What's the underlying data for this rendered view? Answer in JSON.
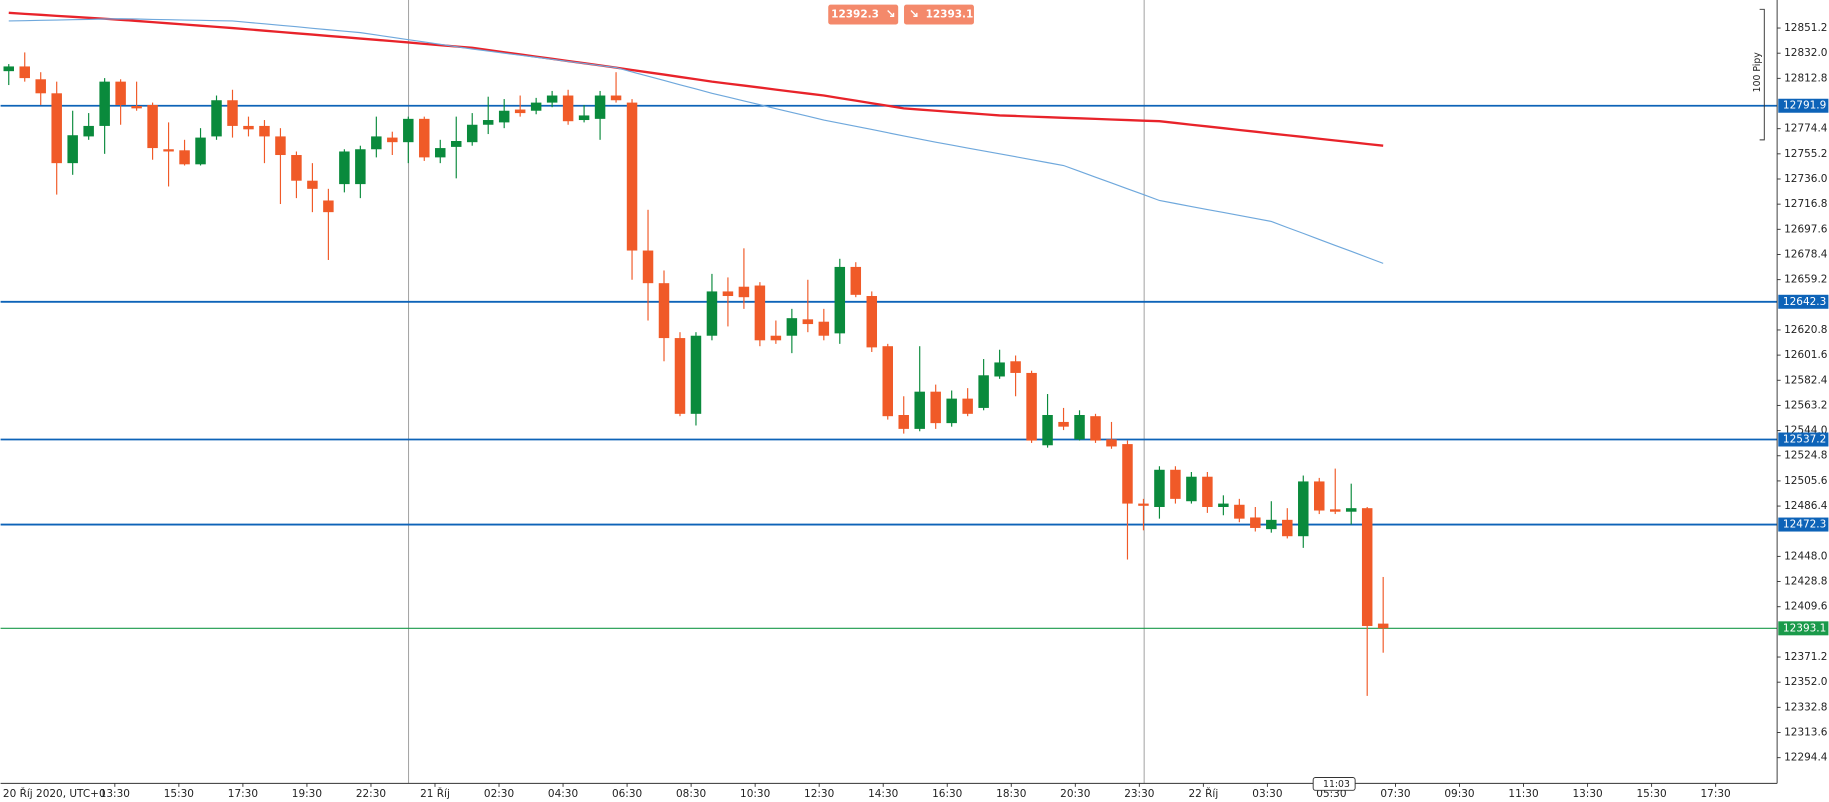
{
  "chart_data": {
    "type": "candlestick",
    "bid_price": "12392.3",
    "ask_price": "12393.1",
    "range_label": "100 Pipy",
    "time_label": "11:03",
    "xlabels": [
      "20 Říj 2020, UTC+0",
      "13:30",
      "15:30",
      "17:30",
      "19:30",
      "22:30",
      "21 Říj",
      "02:30",
      "04:30",
      "06:30",
      "08:30",
      "10:30",
      "12:30",
      "14:30",
      "16:30",
      "18:30",
      "20:30",
      "23:30",
      "22 Říj",
      "03:30",
      "05:30",
      "07:30",
      "09:30",
      "11:30",
      "13:30",
      "15:30",
      "17:30"
    ],
    "up_color": "#0a8a3c",
    "down_color": "#f05a28",
    "open": [
      12818.3,
      12821.9,
      12812.1,
      12801.4,
      12748.1,
      12768.5,
      12776.5,
      12810.3,
      12791.7,
      12792.5,
      12758.7,
      12757.9,
      12747.2,
      12768.5,
      12796.1,
      12776.5,
      12776.5,
      12768.5,
      12754.3,
      12734.7,
      12719.6,
      12732.1,
      12732.1,
      12758.7,
      12767.6,
      12764.1,
      12781.9,
      12752.5,
      12760.5,
      12764.1,
      12777.4,
      12779.2,
      12789.0,
      12788.1,
      12794.3,
      12799.7,
      12781.0,
      12781.9,
      12799.7,
      12794.3,
      12681.4,
      12656.5,
      12614.6,
      12556.8,
      12616.4,
      12650.2,
      12653.8,
      12654.7,
      12616.4,
      12616.4,
      12628.9,
      12627.1,
      12618.2,
      12668.9,
      12646.7,
      12608.4,
      12555.9,
      12545.3,
      12573.7,
      12549.7,
      12568.4,
      12561.3,
      12585.3,
      12596.9,
      12588.0,
      12532.8,
      12550.6,
      12537.3,
      12555.0,
      12537.3,
      12533.7,
      12488.3,
      12485.7,
      12514.1,
      12490.1,
      12508.8,
      12485.7,
      12487.4,
      12477.7,
      12468.8,
      12475.9,
      12463.4,
      12505.2,
      12483.9,
      12482.1,
      12484.8,
      12396.7
    ],
    "high": [
      12823.7,
      12832.6,
      12817.5,
      12810.3,
      12788.1,
      12786.3,
      12813.0,
      12812.1,
      12810.3,
      12794.3,
      12779.2,
      12765.9,
      12774.8,
      12799.7,
      12804.1,
      12783.6,
      12781.0,
      12774.8,
      12757.0,
      12748.1,
      12728.5,
      12758.7,
      12761.4,
      12783.6,
      12772.1,
      12783.6,
      12783.6,
      12765.9,
      12783.6,
      12786.3,
      12798.8,
      12797.0,
      12799.7,
      12797.9,
      12803.2,
      12804.1,
      12792.5,
      12803.2,
      12817.5,
      12797.0,
      12712.5,
      12666.2,
      12619.1,
      12619.1,
      12663.6,
      12660.9,
      12683.1,
      12657.3,
      12628.0,
      12636.9,
      12659.1,
      12636.9,
      12675.1,
      12672.5,
      12650.2,
      12610.2,
      12570.2,
      12608.4,
      12579.1,
      12574.6,
      12576.4,
      12598.6,
      12605.7,
      12601.3,
      12589.7,
      12571.9,
      12561.3,
      12559.5,
      12556.8,
      12550.6,
      12536.4,
      12491.9,
      12516.8,
      12516.8,
      12512.4,
      12512.4,
      12494.6,
      12491.9,
      12485.7,
      12490.1,
      12484.8,
      12509.7,
      12507.9,
      12515.0,
      12503.5,
      12485.7,
      12432.3
    ],
    "low": [
      12807.7,
      12810.3,
      12792.5,
      12724.1,
      12739.2,
      12765.9,
      12755.2,
      12777.4,
      12788.1,
      12750.7,
      12730.3,
      12746.3,
      12746.3,
      12765.9,
      12767.6,
      12768.5,
      12748.1,
      12716.9,
      12721.4,
      12710.7,
      12674.2,
      12725.8,
      12721.4,
      12752.5,
      12754.3,
      12748.1,
      12749.8,
      12748.1,
      12736.5,
      12761.4,
      12770.3,
      12774.8,
      12783.6,
      12785.4,
      12790.8,
      12777.4,
      12779.2,
      12765.9,
      12794.3,
      12659.1,
      12628.0,
      12596.9,
      12555.0,
      12547.9,
      12612.9,
      12623.5,
      12636.9,
      12608.4,
      12610.2,
      12603.1,
      12619.1,
      12612.9,
      12610.2,
      12645.8,
      12604.0,
      12552.4,
      12541.7,
      12543.5,
      12545.3,
      12547.0,
      12555.0,
      12559.5,
      12583.5,
      12570.2,
      12534.6,
      12531.0,
      12544.4,
      12536.4,
      12534.6,
      12530.1,
      12445.6,
      12467.9,
      12476.8,
      12488.3,
      12488.3,
      12481.2,
      12479.4,
      12474.1,
      12467.0,
      12466.1,
      12461.7,
      12454.5,
      12480.3,
      12480.3,
      12472.3,
      12341.6,
      12374.5
    ],
    "close": [
      12821.9,
      12813.0,
      12801.4,
      12748.1,
      12769.4,
      12776.5,
      12810.3,
      12792.5,
      12789.9,
      12759.6,
      12757.0,
      12747.2,
      12767.6,
      12796.1,
      12776.5,
      12773.9,
      12768.5,
      12754.3,
      12734.7,
      12728.5,
      12710.7,
      12757.0,
      12758.7,
      12768.5,
      12764.1,
      12781.9,
      12752.5,
      12759.6,
      12765.0,
      12777.4,
      12781.0,
      12788.1,
      12786.3,
      12794.3,
      12799.7,
      12780.1,
      12784.5,
      12799.7,
      12796.1,
      12681.4,
      12656.5,
      12614.6,
      12556.8,
      12616.4,
      12650.2,
      12646.7,
      12645.8,
      12612.9,
      12612.9,
      12629.8,
      12625.3,
      12616.4,
      12668.9,
      12647.6,
      12607.5,
      12555.0,
      12545.3,
      12573.7,
      12549.7,
      12568.4,
      12556.8,
      12586.2,
      12596.0,
      12588.0,
      12536.4,
      12555.9,
      12547.0,
      12555.9,
      12536.4,
      12531.9,
      12488.3,
      12486.6,
      12514.1,
      12491.9,
      12508.8,
      12485.7,
      12488.3,
      12476.8,
      12469.7,
      12475.9,
      12463.4,
      12505.2,
      12483.0,
      12482.1,
      12484.8,
      12394.9,
      12393.1
    ],
    "moving_averages": [
      {
        "color": "#e8232a",
        "values": [
          12862.8,
          12862.0,
          12861.3,
          12860.5,
          12859.8,
          12859.0,
          12858.3,
          12857.5,
          12856.6,
          12855.7,
          12854.8,
          12853.9,
          12853.0,
          12852.1,
          12851.2,
          12850.2,
          12849.2,
          12848.2,
          12847.2,
          12846.2,
          12845.2,
          12844.2,
          12843.2,
          12842.2,
          12841.2,
          12840.2,
          12839.1,
          12838.1,
          12837.1,
          12836.1,
          12834.4,
          12832.7,
          12831.1,
          12829.4,
          12827.7,
          12826.0,
          12824.4,
          12822.7,
          12821.0,
          12819.2,
          12817.4,
          12815.7,
          12813.9,
          12812.1,
          12810.3,
          12808.8,
          12807.3,
          12805.8,
          12804.2,
          12802.7,
          12801.2,
          12799.7,
          12797.7,
          12795.8,
          12793.8,
          12791.9,
          12789.9,
          12789.0,
          12788.1,
          12787.2,
          12786.3,
          12785.4,
          12784.5,
          12784.1,
          12783.6,
          12783.2,
          12782.7,
          12782.3,
          12781.9,
          12781.4,
          12781.0,
          12780.5,
          12780.1,
          12778.8,
          12777.4,
          12776.1,
          12774.8,
          12773.4,
          12772.1,
          12770.7,
          12769.4,
          12768.1,
          12766.7,
          12765.4,
          12764.1,
          12762.7,
          12761.4
        ]
      },
      {
        "color": "#6fa8dc",
        "values": [
          12856.6,
          12856.8,
          12857.1,
          12857.3,
          12857.6,
          12857.8,
          12858.1,
          12858.3,
          12858.1,
          12857.8,
          12857.6,
          12857.3,
          12857.1,
          12856.8,
          12856.6,
          12855.5,
          12854.4,
          12853.3,
          12852.2,
          12851.0,
          12849.9,
          12848.8,
          12847.7,
          12845.9,
          12844.1,
          12842.3,
          12840.6,
          12838.8,
          12837.0,
          12835.2,
          12833.6,
          12832.0,
          12830.5,
          12828.9,
          12827.3,
          12825.7,
          12824.2,
          12822.6,
          12821.0,
          12817.7,
          12814.5,
          12811.2,
          12807.9,
          12804.7,
          12801.4,
          12798.5,
          12795.6,
          12792.7,
          12789.7,
          12786.8,
          12783.9,
          12781.0,
          12778.6,
          12776.2,
          12773.8,
          12771.3,
          12768.9,
          12766.5,
          12764.1,
          12761.9,
          12759.6,
          12757.4,
          12755.2,
          12753.0,
          12750.7,
          12748.5,
          12746.3,
          12741.9,
          12737.4,
          12733.0,
          12728.5,
          12724.1,
          12719.6,
          12717.3,
          12715.0,
          12712.7,
          12710.5,
          12708.2,
          12705.9,
          12703.6,
          12699.0,
          12694.5,
          12689.9,
          12685.3,
          12680.8,
          12676.2,
          12671.6
        ]
      }
    ],
    "levels": [
      {
        "value": 12791.9,
        "color": "#0d63b8"
      },
      {
        "value": 12642.3,
        "color": "#0d63b8"
      },
      {
        "value": 12537.2,
        "color": "#0d63b8"
      },
      {
        "value": 12472.3,
        "color": "#0d63b8"
      }
    ],
    "current_level": {
      "value": 12393.1,
      "color": "#1a9a4a"
    },
    "ylim": [
      12274.8,
      12872.6
    ],
    "yticks": [
      12851.2,
      {
        "value": 12832,
        "label": "12832.0"
      },
      12812.8,
      12774.4,
      12755.2,
      {
        "value": 12736,
        "label": "12736.0"
      },
      12716.8,
      12697.6,
      12678.4,
      12659.2,
      12620.8,
      12601.6,
      12582.4,
      12563.2,
      {
        "value": 12544,
        "label": "12544.0"
      },
      12524.8,
      12505.6,
      12486.4,
      {
        "value": 12448,
        "label": "12448.0"
      },
      12428.8,
      12409.6,
      12371.2,
      {
        "value": 12352,
        "label": "12352.0"
      },
      12332.8,
      12313.6,
      12294.4
    ]
  }
}
